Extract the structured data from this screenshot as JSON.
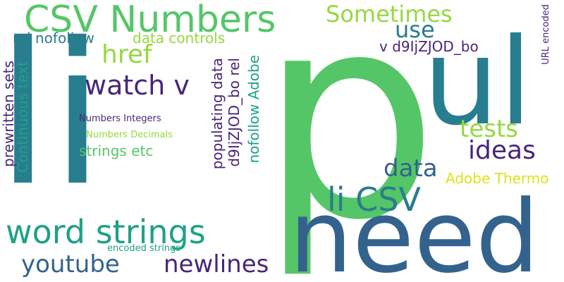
{
  "words": {
    "p": "p",
    "li": "li",
    "need": "need",
    "ul": "ul",
    "csv_numbers": "CSV Numbers",
    "word_strings": "word strings",
    "sometimes": "Sometimes",
    "use": "use",
    "href": "href",
    "watch_v": "watch v",
    "tests": "tests",
    "ideas": "ideas",
    "data": "data",
    "li_csv": "li CSV",
    "youtube": "youtube",
    "newlines": "newlines",
    "rel_nofollow": "rel nofollow",
    "data_controls": "data controls",
    "v_code": "v d9IjZJOD_bo",
    "url_encoded": "URL encoded",
    "prewritten_sets": "prewritten sets",
    "continuous_text": "Continuous text",
    "populating_data": "populating data",
    "code_rel": "d9IjZJOD_bo rel",
    "nofollow_adobe": "nofollow Adobe",
    "numbers_integers": "Numbers Integers",
    "numbers_decimals": "Numbers Decimals",
    "strings_etc": "strings etc",
    "adobe_thermo": "Adobe Thermo",
    "encoded_strings": "encoded strings"
  },
  "colors": {
    "green": "#55c667",
    "teal": "#287d8e",
    "blue": "#33638d",
    "purple": "#482677",
    "sea": "#1fa187",
    "lime": "#95d840",
    "yellow": "#dce319",
    "deep_purple": "#440154"
  }
}
